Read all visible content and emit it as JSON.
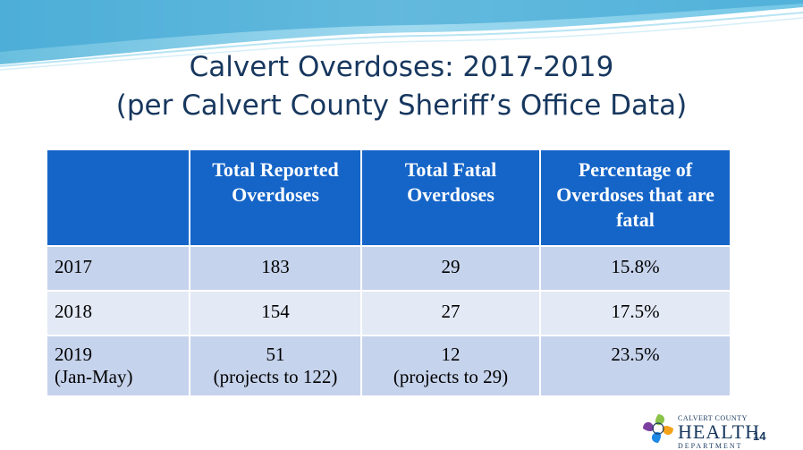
{
  "slide": {
    "title_line1": "Calvert Overdoses: 2017-2019",
    "title_line2": "(per Calvert County Sheriff’s Office Data)",
    "page_number": "14"
  },
  "table": {
    "headers": [
      "",
      "Total Reported Overdoses",
      "Total Fatal Overdoses",
      "Percentage of Overdoses that are fatal"
    ],
    "rows": [
      {
        "year": "2017",
        "year_note": "",
        "reported": "183",
        "reported_note": "",
        "fatal": "29",
        "fatal_note": "",
        "percent": "15.8%"
      },
      {
        "year": "2018",
        "year_note": "",
        "reported": "154",
        "reported_note": "",
        "fatal": "27",
        "fatal_note": "",
        "percent": "17.5%"
      },
      {
        "year": "2019",
        "year_note": "(Jan-May)",
        "reported": "51",
        "reported_note": "(projects to 122)",
        "fatal": "12",
        "fatal_note": "(projects to 29)",
        "percent": "23.5%"
      }
    ]
  },
  "logo": {
    "line1": "CALVERT COUNTY",
    "line2": "HEALTH",
    "line3": "DEPARTMENT"
  },
  "colors": {
    "header_bg": "#1565c8",
    "row_dark": "#c6d3ec",
    "row_light": "#e3e9f5",
    "title": "#17375e"
  }
}
